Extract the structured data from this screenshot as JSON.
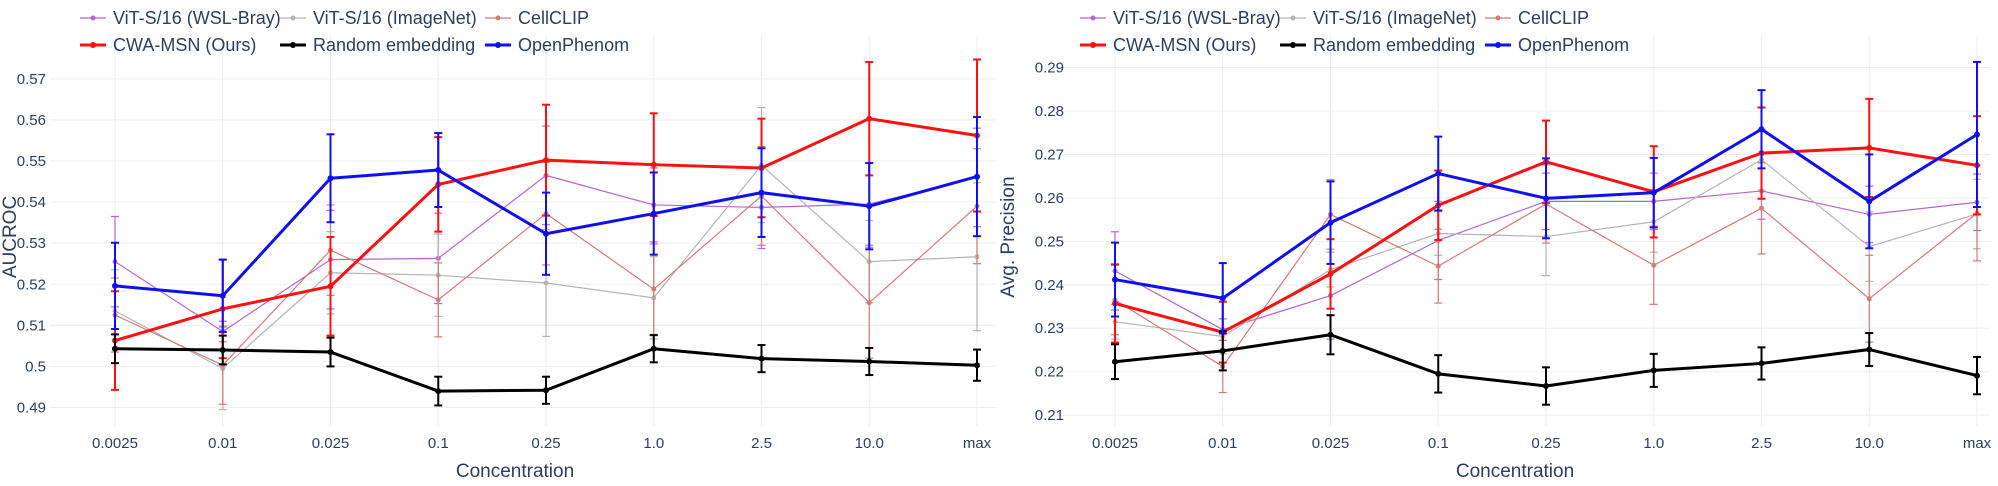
{
  "chart_data": [
    {
      "type": "line",
      "xlabel": "Concentration",
      "ylabel": "AUCROC",
      "categories": [
        "0.0025",
        "0.01",
        "0.025",
        "0.1",
        "0.25",
        "1.0",
        "2.5",
        "10.0",
        "max"
      ],
      "ylim": [
        0.4855,
        0.5775
      ],
      "yticks": [
        0.49,
        0.5,
        0.51,
        0.52,
        0.53,
        0.54,
        0.55,
        0.56,
        0.57
      ],
      "ytick_labels": [
        "0.49",
        "0.5",
        "0.51",
        "0.52",
        "0.53",
        "0.54",
        "0.55",
        "0.56",
        "0.57"
      ],
      "series": [
        {
          "name": "ViT-S/16 (WSL-Bray)",
          "color": "#b567c9",
          "width": 1.2,
          "values": [
            0.5255,
            0.5085,
            0.526,
            0.5263,
            0.5465,
            0.5393,
            0.5387,
            0.5395,
            0.546
          ],
          "errors": [
            0.011,
            0.0025,
            0.012,
            0.011,
            0.012,
            0.009,
            0.01,
            0.01,
            0.012
          ]
        },
        {
          "name": "ViT-S/16 (ImageNet)",
          "color": "#b4b4b4",
          "width": 1.2,
          "values": [
            0.5135,
            0.4995,
            0.5228,
            0.5222,
            0.5203,
            0.5167,
            0.549,
            0.5255,
            0.5267
          ],
          "errors": [
            0.01,
            0.01,
            0.01,
            0.01,
            0.013,
            0.01,
            0.014,
            0.01,
            0.018
          ]
        },
        {
          "name": "CellCLIP",
          "color": "#d47a78",
          "width": 1.2,
          "values": [
            0.5125,
            0.5003,
            0.5283,
            0.5162,
            0.5372,
            0.5188,
            0.5415,
            0.5155,
            0.539
          ],
          "errors": [
            0.009,
            0.0095,
            0.011,
            0.009,
            0.0125,
            0.011,
            0.012,
            0.0135,
            0.014
          ]
        },
        {
          "name": "CWA-MSN (Ours)",
          "color": "#ff1010",
          "width": 3,
          "values": [
            0.5063,
            0.514,
            0.5195,
            0.5443,
            0.5502,
            0.5491,
            0.5483,
            0.5603,
            0.5562
          ],
          "errors": [
            0.012,
            0.012,
            0.012,
            0.0115,
            0.0135,
            0.0125,
            0.012,
            0.0138,
            0.0185
          ]
        },
        {
          "name": "Random embedding",
          "color": "#000000",
          "width": 3,
          "values": [
            0.5043,
            0.504,
            0.5035,
            0.494,
            0.4942,
            0.5043,
            0.5019,
            0.5012,
            0.5003
          ],
          "errors": [
            0.0035,
            0.0035,
            0.0035,
            0.0035,
            0.0033,
            0.0033,
            0.0033,
            0.0033,
            0.0038
          ]
        },
        {
          "name": "OpenPhenom",
          "color": "#0f0fef",
          "width": 3,
          "values": [
            0.5196,
            0.5172,
            0.5458,
            0.5478,
            0.5323,
            0.5372,
            0.5423,
            0.539,
            0.5462
          ],
          "errors": [
            0.0105,
            0.0088,
            0.0107,
            0.009,
            0.01,
            0.01,
            0.0108,
            0.0105,
            0.0145
          ]
        }
      ]
    },
    {
      "type": "line",
      "xlabel": "Concentration",
      "ylabel": "Avg. Precision",
      "categories": [
        "0.0025",
        "0.01",
        "0.025",
        "0.1",
        "0.25",
        "1.0",
        "2.5",
        "10.0",
        "max"
      ],
      "ylim": [
        0.2075,
        0.2945
      ],
      "yticks": [
        0.21,
        0.22,
        0.23,
        0.24,
        0.25,
        0.26,
        0.27,
        0.28,
        0.29
      ],
      "ytick_labels": [
        "0.21",
        "0.22",
        "0.23",
        "0.24",
        "0.25",
        "0.26",
        "0.27",
        "0.28",
        "0.29"
      ],
      "series": [
        {
          "name": "ViT-S/16 (WSL-Bray)",
          "color": "#b567c9",
          "width": 1.2,
          "values": [
            0.2432,
            0.2297,
            0.2375,
            0.2502,
            0.2592,
            0.2592,
            0.2616,
            0.2562,
            0.259
          ],
          "errors": [
            0.009,
            0.0025,
            0.01,
            0.009,
            0.0065,
            0.0065,
            0.0065,
            0.0065,
            0.0065
          ]
        },
        {
          "name": "ViT-S/16 (ImageNet)",
          "color": "#b4b4b4",
          "width": 1.2,
          "values": [
            0.2315,
            0.2281,
            0.2435,
            0.2518,
            0.2511,
            0.2545,
            0.2688,
            0.2488,
            0.2563
          ],
          "errors": [
            0.004,
            0.004,
            0.004,
            0.005,
            0.009,
            0.007,
            0.007,
            0.008,
            0.008
          ]
        },
        {
          "name": "CellCLIP",
          "color": "#d47a78",
          "width": 1.2,
          "values": [
            0.2365,
            0.2212,
            0.2562,
            0.2443,
            0.2586,
            0.2445,
            0.2576,
            0.2368,
            0.2565
          ],
          "errors": [
            0.008,
            0.006,
            0.008,
            0.0085,
            0.009,
            0.009,
            0.0105,
            0.01,
            0.011
          ]
        },
        {
          "name": "CWA-MSN (Ours)",
          "color": "#ff1010",
          "width": 3,
          "values": [
            0.2357,
            0.2291,
            0.2425,
            0.2583,
            0.2683,
            0.2614,
            0.2703,
            0.2715,
            0.2675
          ],
          "errors": [
            0.009,
            0.007,
            0.008,
            0.008,
            0.0095,
            0.0105,
            0.0105,
            0.0113,
            0.0113
          ]
        },
        {
          "name": "Random embedding",
          "color": "#000000",
          "width": 3,
          "values": [
            0.2223,
            0.2248,
            0.2285,
            0.2195,
            0.2167,
            0.2203,
            0.2219,
            0.2251,
            0.2191
          ],
          "errors": [
            0.004,
            0.0045,
            0.0045,
            0.0043,
            0.0043,
            0.0038,
            0.0037,
            0.0038,
            0.0043
          ]
        },
        {
          "name": "OpenPhenom",
          "color": "#0f0fef",
          "width": 3,
          "values": [
            0.2412,
            0.2369,
            0.2543,
            0.2656,
            0.2599,
            0.2612,
            0.2758,
            0.2592,
            0.2746
          ],
          "errors": [
            0.0085,
            0.0081,
            0.0095,
            0.0085,
            0.0092,
            0.008,
            0.009,
            0.0108,
            0.0167
          ]
        }
      ]
    }
  ],
  "legend": {
    "placement": "top-left",
    "rows": [
      [
        "ViT-S/16 (WSL-Bray)",
        "ViT-S/16 (ImageNet)",
        "CellCLIP"
      ],
      [
        "CWA-MSN (Ours)",
        "Random embedding",
        "OpenPhenom"
      ]
    ]
  },
  "colors": {
    "background": "#ffffff",
    "grid": "#ebeef3",
    "text": "#2a3f5f"
  }
}
